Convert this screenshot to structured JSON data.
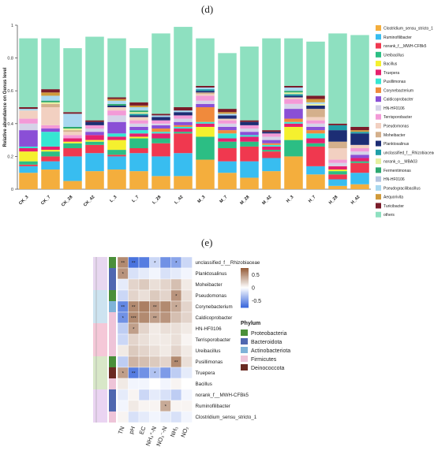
{
  "panels": {
    "d": "(d)",
    "e": "(e)"
  },
  "chart_data": [
    {
      "type": "bar",
      "stacked": true,
      "ylabel": "Relative abundance on Genus level",
      "ylim": [
        0,
        1
      ],
      "yticks": [
        "0",
        "0.2",
        "0.4",
        "0.6",
        "0.8",
        "1"
      ],
      "categories": [
        "CK_3",
        "CK_7",
        "CK_28",
        "CK_42",
        "L_3",
        "L_7",
        "L_28",
        "L_42",
        "M_3",
        "M_7",
        "M_28",
        "M_42",
        "H_3",
        "H_7",
        "H_28",
        "H_42"
      ],
      "legend_position": "right",
      "series": [
        {
          "name": "Clostridium_sensu_stricto_1",
          "color": "#f4ae3d",
          "values": [
            0.1,
            0.12,
            0.05,
            0.11,
            0.12,
            0.11,
            0.08,
            0.08,
            0.18,
            0.1,
            0.07,
            0.11,
            0.2,
            0.09,
            0.02,
            0.03
          ]
        },
        {
          "name": "Ruminofilibacter",
          "color": "#38bdf0",
          "values": [
            0.04,
            0.05,
            0.15,
            0.11,
            0.08,
            0.11,
            0.12,
            0.14,
            0.0,
            0.07,
            0.1,
            0.08,
            0.0,
            0.05,
            0.04,
            0.07
          ]
        },
        {
          "name": "norank_f__MWH-CFBk5",
          "color": "#f0384f",
          "values": [
            0.01,
            0.03,
            0.05,
            0.05,
            0.01,
            0.03,
            0.08,
            0.12,
            0.0,
            0.08,
            0.09,
            0.04,
            0.0,
            0.12,
            0.03,
            0.06
          ]
        },
        {
          "name": "Ureibacillus",
          "color": "#2cbe84",
          "values": [
            0.02,
            0.03,
            0.03,
            0.02,
            0.03,
            0.06,
            0.03,
            0.01,
            0.14,
            0.04,
            0.03,
            0.01,
            0.1,
            0.02,
            0.02,
            0.01
          ]
        },
        {
          "name": "Bacillus",
          "color": "#f5f02e",
          "values": [
            0.06,
            0.01,
            0.01,
            0.01,
            0.06,
            0.01,
            0.0,
            0.0,
            0.06,
            0.0,
            0.0,
            0.0,
            0.08,
            0.0,
            0.01,
            0.0
          ]
        },
        {
          "name": "Truepera",
          "color": "#e6206d",
          "values": [
            0.02,
            0.02,
            0.02,
            0.03,
            0.02,
            0.02,
            0.03,
            0.02,
            0.02,
            0.02,
            0.03,
            0.02,
            0.02,
            0.03,
            0.02,
            0.02
          ]
        },
        {
          "name": "Pusillimonas",
          "color": "#36e6d2",
          "values": [
            0.01,
            0.09,
            0.0,
            0.0,
            0.02,
            0.02,
            0.01,
            0.01,
            0.01,
            0.03,
            0.01,
            0.01,
            0.01,
            0.03,
            0.0,
            0.0
          ]
        },
        {
          "name": "Corynebacterium",
          "color": "#f08a3c",
          "values": [
            0.0,
            0.0,
            0.0,
            0.0,
            0.0,
            0.0,
            0.02,
            0.01,
            0.09,
            0.02,
            0.0,
            0.01,
            0.02,
            0.02,
            0.0,
            0.0
          ]
        },
        {
          "name": "Caldicoprobacter",
          "color": "#8a4fd6",
          "values": [
            0.1,
            0.02,
            0.0,
            0.02,
            0.07,
            0.02,
            0.02,
            0.02,
            0.02,
            0.02,
            0.02,
            0.02,
            0.06,
            0.02,
            0.0,
            0.02
          ]
        },
        {
          "name": "HN-HF0106",
          "color": "#d5d3e8",
          "values": [
            0.04,
            0.0,
            0.0,
            0.02,
            0.04,
            0.02,
            0.01,
            0.02,
            0.02,
            0.02,
            0.02,
            0.02,
            0.03,
            0.02,
            0.02,
            0.02
          ]
        },
        {
          "name": "Terrisporobacter",
          "color": "#f39ad7",
          "values": [
            0.03,
            0.02,
            0.02,
            0.02,
            0.03,
            0.02,
            0.02,
            0.02,
            0.03,
            0.02,
            0.02,
            0.02,
            0.03,
            0.02,
            0.02,
            0.02
          ]
        },
        {
          "name": "Pseudomonas",
          "color": "#f2d0c1",
          "values": [
            0.05,
            0.11,
            0.02,
            0.0,
            0.02,
            0.02,
            0.0,
            0.0,
            0.01,
            0.01,
            0.0,
            0.0,
            0.01,
            0.02,
            0.07,
            0.02
          ]
        },
        {
          "name": "Moheibacter",
          "color": "#d4b08c",
          "values": [
            0.0,
            0.02,
            0.01,
            0.0,
            0.0,
            0.0,
            0.0,
            0.0,
            0.01,
            0.0,
            0.0,
            0.0,
            0.0,
            0.05,
            0.04,
            0.0
          ]
        },
        {
          "name": "Planktosalinus",
          "color": "#1c2d74",
          "values": [
            0.0,
            0.0,
            0.0,
            0.02,
            0.01,
            0.01,
            0.02,
            0.02,
            0.01,
            0.02,
            0.02,
            0.01,
            0.01,
            0.02,
            0.07,
            0.07
          ]
        },
        {
          "name": "unclassified_f__Rhizobiaceae",
          "color": "#1f9fa8",
          "values": [
            0.0,
            0.0,
            0.0,
            0.0,
            0.0,
            0.01,
            0.0,
            0.0,
            0.01,
            0.0,
            0.0,
            0.0,
            0.01,
            0.0,
            0.03,
            0.01
          ]
        },
        {
          "name": "norank_o__MBA03",
          "color": "#e6f0a0",
          "values": [
            0.0,
            0.01,
            0.01,
            0.0,
            0.0,
            0.01,
            0.0,
            0.0,
            0.0,
            0.0,
            0.0,
            0.0,
            0.01,
            0.01,
            0.0,
            0.0
          ]
        },
        {
          "name": "Fermentimonas",
          "color": "#2ca870",
          "values": [
            0.0,
            0.01,
            0.01,
            0.0,
            0.01,
            0.01,
            0.0,
            0.0,
            0.0,
            0.0,
            0.0,
            0.0,
            0.01,
            0.0,
            0.0,
            0.0
          ]
        },
        {
          "name": "HN-HF0106",
          "color": "#b3c4e0",
          "values": [
            0.0,
            0.0,
            0.0,
            0.0,
            0.0,
            0.0,
            0.0,
            0.0,
            0.0,
            0.0,
            0.0,
            0.0,
            0.0,
            0.0,
            0.0,
            0.0
          ]
        },
        {
          "name": "Pseudogracilibacillus",
          "color": "#a8d8f0",
          "values": [
            0.01,
            0.03,
            0.08,
            0.0,
            0.02,
            0.02,
            0.01,
            0.01,
            0.01,
            0.01,
            0.0,
            0.0,
            0.02,
            0.01,
            0.0,
            0.0
          ]
        },
        {
          "name": "Aequorivita",
          "color": "#d09a3a",
          "values": [
            0.0,
            0.02,
            0.0,
            0.0,
            0.01,
            0.01,
            0.0,
            0.0,
            0.0,
            0.01,
            0.0,
            0.0,
            0.0,
            0.02,
            0.0,
            0.01
          ]
        },
        {
          "name": "Turicibacter",
          "color": "#7a1c2a",
          "values": [
            0.01,
            0.02,
            0.01,
            0.01,
            0.01,
            0.02,
            0.01,
            0.02,
            0.01,
            0.02,
            0.01,
            0.01,
            0.01,
            0.02,
            0.01,
            0.02
          ]
        },
        {
          "name": "others",
          "color": "#8ee0c0",
          "values": [
            0.42,
            0.31,
            0.39,
            0.51,
            0.36,
            0.33,
            0.49,
            0.49,
            0.29,
            0.34,
            0.45,
            0.56,
            0.29,
            0.33,
            0.55,
            0.56
          ]
        }
      ]
    },
    {
      "type": "heatmap",
      "columns": [
        "TN",
        "pH",
        "EC",
        "NH₄⁺-N",
        "NO₃⁻-N",
        "NH₃",
        "NO₂"
      ],
      "rows": [
        "unclassified_f__Rhizobiaceae",
        "Planktosalinus",
        "Moheibacter",
        "Pseudomonas",
        "Corynebacterium",
        "Caldicoprobacter",
        "HN-HF0106",
        "Terrisporobacter",
        "Ureibacillus",
        "Pusillimonas",
        "Truepera",
        "Bacillus",
        "norank_f__MWH-CFBk5",
        "Ruminofilibacter",
        "Clostridium_sensu_stricto_1"
      ],
      "row_phylum": [
        "Proteobacteria",
        "Bacteroidota",
        "Bacteroidota",
        "Proteobacteria",
        "Actinobacteriota",
        "Firmicutes",
        "Firmicutes",
        "Firmicutes",
        "Firmicutes",
        "Proteobacteria",
        "Deinococcota",
        "Firmicutes",
        "Bacteroidota",
        "Bacteroidota",
        "Firmicutes"
      ],
      "values": [
        [
          0.55,
          -0.7,
          -0.65,
          -0.2,
          -0.55,
          -0.45,
          -0.2
        ],
        [
          0.5,
          -0.15,
          -0.1,
          -0.05,
          -0.15,
          -0.1,
          -0.05
        ],
        [
          -0.1,
          0.2,
          0.25,
          0.15,
          0.2,
          0.3,
          0.1
        ],
        [
          -0.2,
          0.2,
          0.15,
          0.25,
          0.2,
          0.5,
          0.15
        ],
        [
          -0.6,
          0.55,
          0.6,
          0.5,
          0.55,
          0.4,
          0.2
        ],
        [
          -0.55,
          0.55,
          0.55,
          0.45,
          0.5,
          0.3,
          0.2
        ],
        [
          -0.25,
          0.45,
          0.2,
          0.1,
          0.15,
          0.15,
          0.1
        ],
        [
          -0.2,
          0.2,
          0.15,
          0.1,
          0.1,
          0.15,
          0.05
        ],
        [
          0.1,
          0.25,
          0.2,
          0.15,
          0.1,
          0.2,
          0.1
        ],
        [
          -0.25,
          0.35,
          0.3,
          0.25,
          0.2,
          0.55,
          0.15
        ],
        [
          0.45,
          -0.65,
          -0.55,
          -0.3,
          -0.5,
          -0.25,
          -0.1
        ],
        [
          0.1,
          -0.05,
          -0.05,
          0.0,
          -0.05,
          0.05,
          0.0
        ],
        [
          -0.1,
          0.05,
          -0.2,
          -0.1,
          -0.15,
          -0.25,
          -0.05
        ],
        [
          -0.05,
          0.1,
          0.05,
          0.05,
          0.4,
          0.05,
          0.05
        ],
        [
          0.05,
          -0.15,
          -0.1,
          -0.05,
          -0.1,
          -0.15,
          -0.05
        ]
      ],
      "stars": [
        [
          "**",
          "**",
          "",
          "*",
          "",
          "*",
          ""
        ],
        [
          "*",
          "",
          "",
          "",
          "",
          "",
          ""
        ],
        [
          "",
          "",
          "",
          "",
          "",
          "",
          ""
        ],
        [
          "",
          "",
          "",
          "",
          "",
          "*",
          ""
        ],
        [
          "**",
          "**",
          "",
          "**",
          "",
          "*",
          ""
        ],
        [
          "*",
          "***",
          "",
          "**",
          "",
          "",
          ""
        ],
        [
          "",
          "*",
          "",
          "",
          "",
          "",
          ""
        ],
        [
          "",
          "",
          "",
          "",
          "",
          "",
          ""
        ],
        [
          "",
          "",
          "",
          "",
          "",
          "",
          ""
        ],
        [
          "",
          "",
          "",
          "",
          "",
          "**",
          ""
        ],
        [
          "*",
          "**",
          "",
          "*",
          "",
          "",
          ""
        ],
        [
          "",
          "",
          "",
          "",
          "",
          "",
          ""
        ],
        [
          "",
          "",
          "",
          "",
          "",
          "",
          ""
        ],
        [
          "",
          "",
          "",
          "",
          "*",
          "",
          ""
        ],
        [
          "",
          "",
          "",
          "",
          "",
          "",
          ""
        ]
      ],
      "colorbar": {
        "ticks": [
          "0.5",
          "0",
          "-0.5"
        ],
        "range": [
          -0.75,
          0.75
        ]
      },
      "phylum_legend": {
        "title": "Phylum",
        "items": [
          {
            "name": "Proteobacteria",
            "color": "#4a8f3a"
          },
          {
            "name": "Bacteroidota",
            "color": "#4f67b0"
          },
          {
            "name": "Actinobacteriota",
            "color": "#7fb3d8"
          },
          {
            "name": "Firmicutes",
            "color": "#eec4d8"
          },
          {
            "name": "Deinococcota",
            "color": "#6a2a22"
          }
        ]
      },
      "group_strip_colors": [
        "#e7d7f0",
        "#cde3f0",
        "#f5c8d8",
        "#d8e7c8",
        "#ead4f2"
      ]
    }
  ]
}
